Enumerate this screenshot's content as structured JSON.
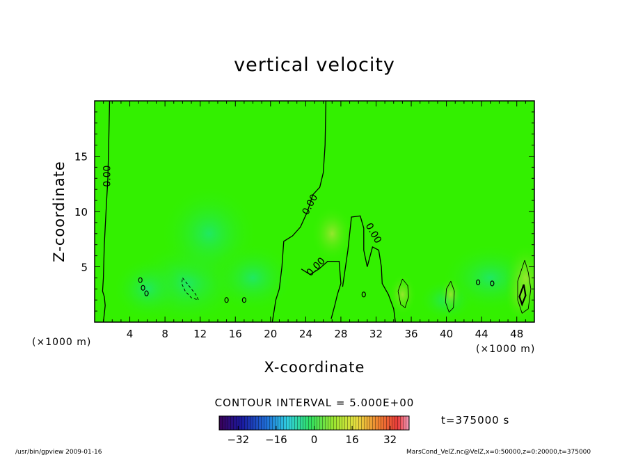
{
  "chart_data": {
    "type": "heatmap",
    "title": "vertical velocity",
    "xlabel": "X-coordinate",
    "ylabel": "Z-coordinate",
    "x_unit": "(×1000 m)",
    "y_unit": "(×1000 m)",
    "xlim": [
      0,
      50
    ],
    "ylim": [
      0,
      20
    ],
    "x_ticks": [
      4,
      8,
      12,
      16,
      20,
      24,
      28,
      32,
      36,
      40,
      44,
      48
    ],
    "y_ticks": [
      5,
      10,
      15
    ],
    "contour_interval_text": "CONTOUR INTERVAL = 5.000E+00",
    "contour_labels": [
      {
        "text": "0.00",
        "x": 1.8,
        "z": 13.2,
        "rotate": -90
      },
      {
        "text": "0.00",
        "x": 24.8,
        "z": 10.5,
        "rotate": -62
      },
      {
        "text": "0.00",
        "x": 31.4,
        "z": 7.9,
        "rotate": 60
      },
      {
        "text": "0.00",
        "x": 25.4,
        "z": 4.8,
        "rotate": -45
      }
    ],
    "colorbar": {
      "vmin": -40,
      "vmax": 40,
      "ticks": [
        -32,
        -16,
        0,
        16,
        32
      ],
      "tick_labels": [
        "−32",
        "−16",
        "0",
        "16",
        "32"
      ]
    },
    "time_label": "t=375000 s"
  },
  "footer": {
    "left": "/usr/bin/gpview   2009-01-16",
    "right": "MarsCond_VelZ.nc@VelZ,x=0:50000,z=0:20000,t=375000"
  },
  "colors": {
    "field_base": "#33f000",
    "positive": "#8cea28",
    "negative": "#1fe866",
    "contour": "#000000"
  }
}
